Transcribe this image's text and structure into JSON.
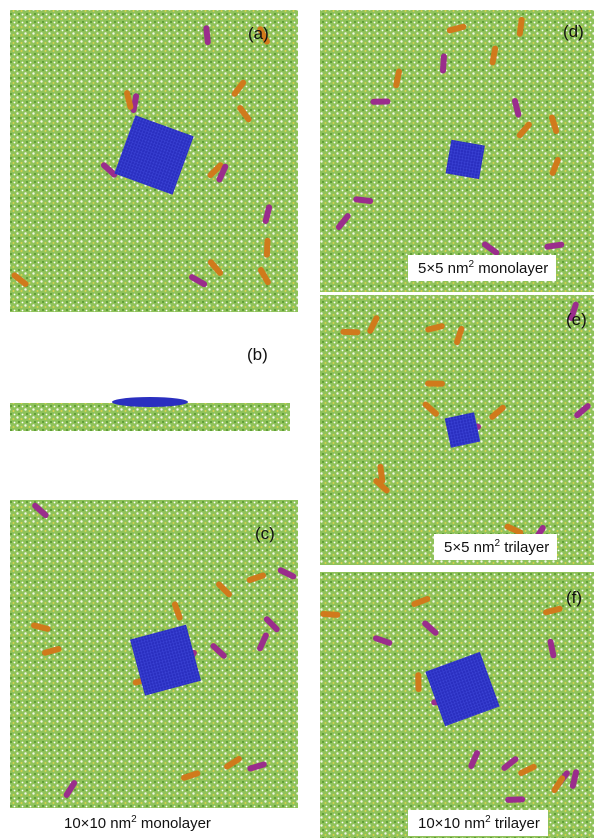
{
  "panels": [
    {
      "label": "(a)"
    },
    {
      "label": "(b)"
    },
    {
      "label": "(c)",
      "caption": {
        "size": "10×10 nm",
        "exponent": "2",
        "kind": "monolayer"
      }
    },
    {
      "label": "(d)",
      "caption": {
        "size": "5×5 nm",
        "exponent": "2",
        "kind": "monolayer"
      }
    },
    {
      "label": "(e)",
      "caption": {
        "size": "5×5 nm",
        "exponent": "2",
        "kind": "trilayer"
      }
    },
    {
      "label": "(f)",
      "caption": {
        "size": "10×10 nm",
        "exponent": "2",
        "kind": "trilayer"
      }
    }
  ]
}
